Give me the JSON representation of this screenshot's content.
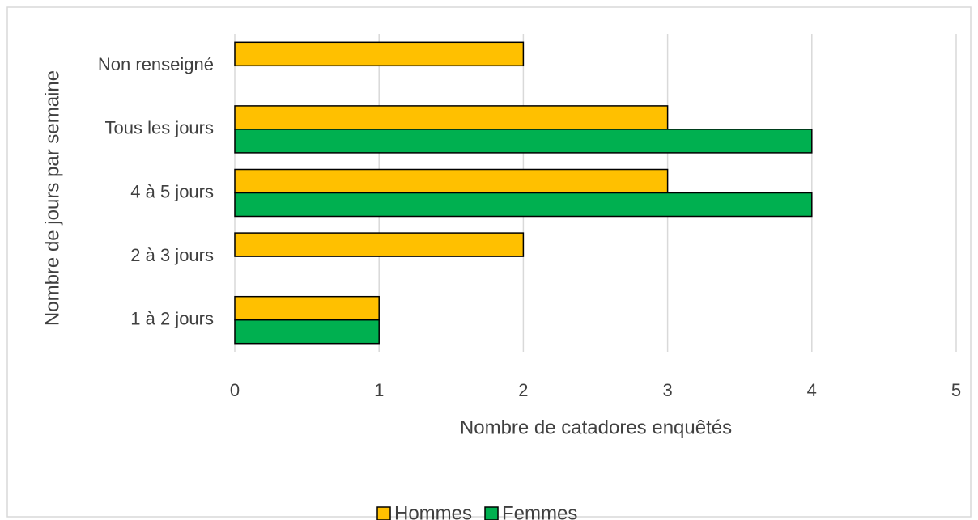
{
  "chart_data": {
    "type": "hbar",
    "categories": [
      "1 à 2 jours",
      "2 à 3 jours",
      "4 à 5 jours",
      "Tous les jours",
      "Non renseigné"
    ],
    "series": [
      {
        "name": "Hommes",
        "color": "#FFC000",
        "values": [
          1,
          2,
          3,
          3,
          2
        ]
      },
      {
        "name": "Femmes",
        "color": "#00B050",
        "values": [
          1,
          null,
          4,
          4,
          null
        ]
      }
    ],
    "xlim": [
      0,
      5
    ],
    "xticks": [
      0,
      1,
      2,
      3,
      4,
      5
    ],
    "grid": true,
    "xlabel": "Nombre de catadores enquêtés",
    "ylabel": "Nombre de jours par semaine",
    "legend": "bottom"
  }
}
